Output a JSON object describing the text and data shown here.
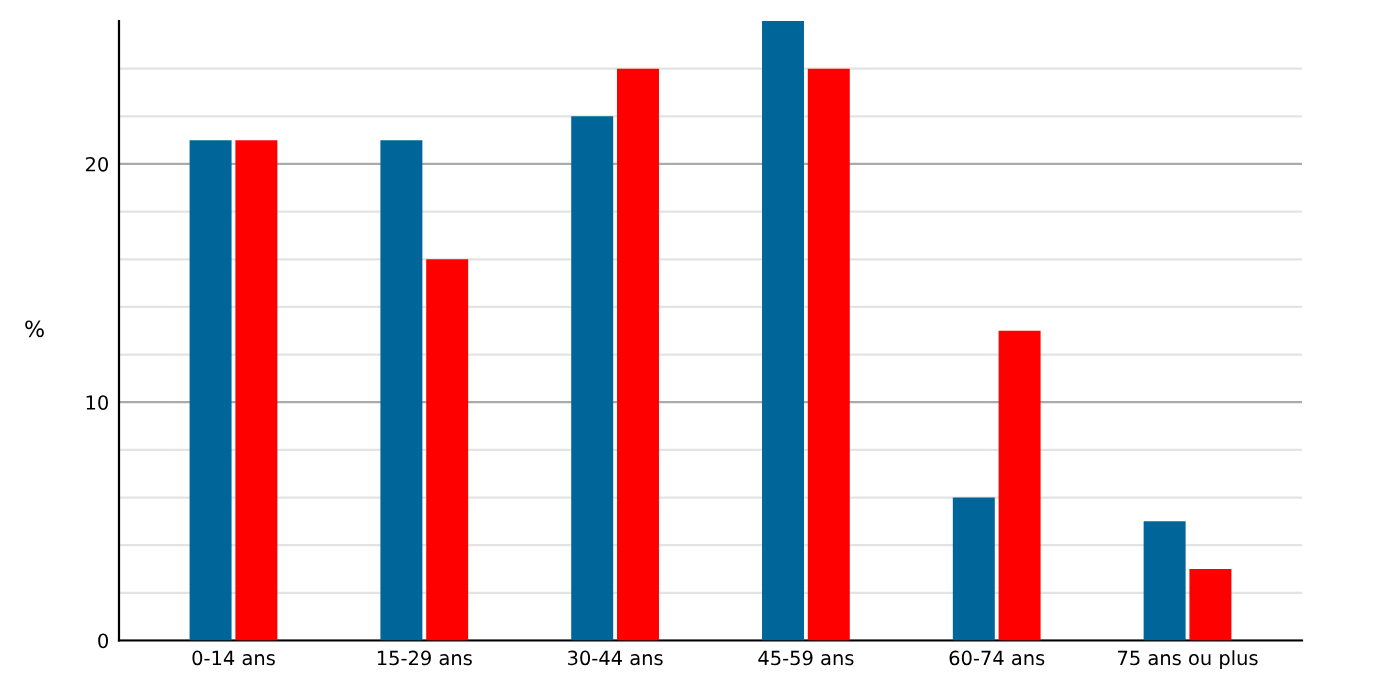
{
  "chart_data": {
    "type": "bar",
    "ylabel": "%",
    "categories": [
      "0-14 ans",
      "15-29 ans",
      "30-44 ans",
      "45-59 ans",
      "60-74 ans",
      "75 ans ou plus"
    ],
    "series": [
      {
        "color": "#006699",
        "values": [
          21,
          21,
          22,
          26,
          6,
          5
        ]
      },
      {
        "color": "#ff0000",
        "values": [
          21,
          16,
          24,
          24,
          13,
          3
        ]
      }
    ],
    "ylim": [
      0,
      26
    ],
    "yticks": [
      0,
      {
        "value": 2,
        "label": null
      },
      {
        "value": 4,
        "label": null
      },
      {
        "value": 6,
        "label": null
      },
      {
        "value": 8,
        "label": null
      },
      10,
      {
        "value": 12,
        "label": null
      },
      {
        "value": 14,
        "label": null
      },
      {
        "value": 16,
        "label": null
      },
      {
        "value": 18,
        "label": null
      },
      20,
      {
        "value": 22,
        "label": null
      },
      {
        "value": 24,
        "label": null
      }
    ],
    "grid": "y"
  }
}
